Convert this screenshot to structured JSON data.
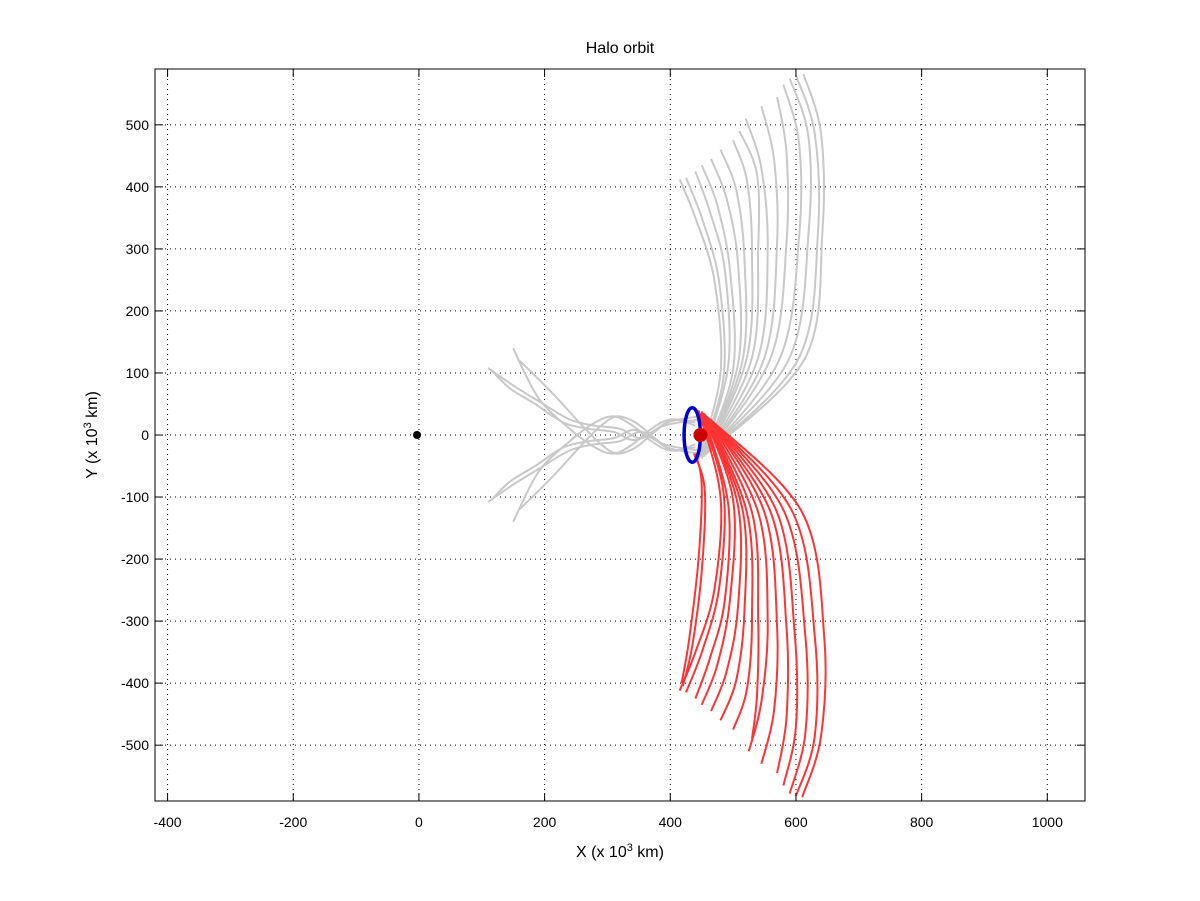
{
  "chart_data": {
    "type": "line",
    "title": "Halo orbit",
    "xlabel": {
      "prefix": "X (x 10",
      "sup": "3",
      "suffix": " km)"
    },
    "ylabel": {
      "prefix": "Y (x 10",
      "sup": "3",
      "suffix": " km)"
    },
    "xlim": [
      -420,
      1060
    ],
    "ylim": [
      -590,
      590
    ],
    "xticks": [
      -400,
      -200,
      0,
      200,
      400,
      600,
      800,
      1000
    ],
    "yticks": [
      -500,
      -400,
      -300,
      -200,
      -100,
      0,
      100,
      200,
      300,
      400,
      500
    ],
    "grid": true,
    "legend": "none",
    "colors": {
      "stable_manifold": "#c8c8c8",
      "unstable_manifold": "#ff3333",
      "halo_orbit": "#0000cc",
      "l2_point": "#cc0000",
      "earth": "#000000"
    },
    "earth": {
      "x": -3,
      "y": 0
    },
    "l2_point": {
      "x": 448,
      "y": 0
    },
    "halo": {
      "cx": 435,
      "cy": 0,
      "rx": 13,
      "ry": 44
    },
    "unstable_manifold": [
      {
        "x": [
          445,
          480,
          470,
          440,
          415
        ],
        "y": [
          40,
          -100,
          -250,
          -350,
          -412
        ]
      },
      {
        "x": [
          448,
          485,
          478,
          452,
          425
        ],
        "y": [
          35,
          -95,
          -245,
          -345,
          -415
        ]
      },
      {
        "x": [
          450,
          492,
          487,
          463,
          440
        ],
        "y": [
          38,
          -110,
          -265,
          -360,
          -425
        ]
      },
      {
        "x": [
          452,
          500,
          495,
          475,
          450
        ],
        "y": [
          35,
          -105,
          -265,
          -370,
          -435
        ]
      },
      {
        "x": [
          454,
          508,
          508,
          490,
          465
        ],
        "y": [
          35,
          -115,
          -275,
          -380,
          -445
        ]
      },
      {
        "x": [
          455,
          515,
          518,
          505,
          480
        ],
        "y": [
          32,
          -120,
          -285,
          -395,
          -460
        ]
      },
      {
        "x": [
          456,
          522,
          530,
          522,
          500
        ],
        "y": [
          32,
          -125,
          -295,
          -410,
          -475
        ]
      },
      {
        "x": [
          457,
          530,
          540,
          538,
          530
        ],
        "y": [
          30,
          -125,
          -300,
          -420,
          -490
        ]
      },
      {
        "x": [
          458,
          540,
          555,
          545,
          525
        ],
        "y": [
          30,
          -125,
          -300,
          -430,
          -510
        ]
      },
      {
        "x": [
          460,
          550,
          570,
          565,
          545
        ],
        "y": [
          28,
          -125,
          -310,
          -445,
          -530
        ]
      },
      {
        "x": [
          460,
          560,
          585,
          585,
          570
        ],
        "y": [
          28,
          -125,
          -310,
          -455,
          -545
        ]
      },
      {
        "x": [
          462,
          570,
          598,
          600,
          580
        ],
        "y": [
          26,
          -125,
          -320,
          -470,
          -565
        ]
      },
      {
        "x": [
          462,
          582,
          615,
          615,
          590
        ],
        "y": [
          26,
          -125,
          -325,
          -480,
          -578
        ]
      },
      {
        "x": [
          463,
          595,
          630,
          630,
          600
        ],
        "y": [
          25,
          -125,
          -325,
          -485,
          -582
        ]
      },
      {
        "x": [
          464,
          610,
          645,
          640,
          610
        ],
        "y": [
          25,
          -125,
          -325,
          -485,
          -584
        ]
      },
      {
        "x": [
          440,
          450,
          445,
          430,
          418
        ],
        "y": [
          -30,
          -80,
          -200,
          -330,
          -400
        ]
      },
      {
        "x": [
          438,
          455,
          450,
          435,
          420
        ],
        "y": [
          -30,
          -90,
          -220,
          -340,
          -405
        ]
      }
    ],
    "stable_manifold_right": [
      {
        "x": [
          445,
          480,
          470,
          440,
          415
        ],
        "y": [
          -40,
          100,
          250,
          350,
          412
        ]
      },
      {
        "x": [
          448,
          485,
          478,
          452,
          425
        ],
        "y": [
          -35,
          95,
          245,
          345,
          415
        ]
      },
      {
        "x": [
          450,
          492,
          487,
          463,
          440
        ],
        "y": [
          -38,
          110,
          265,
          360,
          425
        ]
      },
      {
        "x": [
          452,
          500,
          495,
          475,
          450
        ],
        "y": [
          -35,
          105,
          265,
          370,
          435
        ]
      },
      {
        "x": [
          454,
          508,
          508,
          490,
          465
        ],
        "y": [
          -35,
          115,
          275,
          380,
          445
        ]
      },
      {
        "x": [
          455,
          515,
          518,
          505,
          480
        ],
        "y": [
          -32,
          120,
          285,
          395,
          460
        ]
      },
      {
        "x": [
          456,
          522,
          530,
          522,
          500
        ],
        "y": [
          -32,
          125,
          295,
          410,
          475
        ]
      },
      {
        "x": [
          457,
          530,
          540,
          538,
          510
        ],
        "y": [
          -30,
          125,
          300,
          420,
          490
        ]
      },
      {
        "x": [
          458,
          540,
          555,
          545,
          520
        ],
        "y": [
          -30,
          125,
          300,
          430,
          510
        ]
      },
      {
        "x": [
          460,
          550,
          570,
          565,
          545
        ],
        "y": [
          -28,
          125,
          310,
          445,
          530
        ]
      },
      {
        "x": [
          460,
          560,
          585,
          585,
          570
        ],
        "y": [
          -28,
          125,
          310,
          455,
          545
        ]
      },
      {
        "x": [
          462,
          575,
          605,
          605,
          580
        ],
        "y": [
          -26,
          125,
          320,
          470,
          565
        ]
      },
      {
        "x": [
          463,
          590,
          620,
          620,
          590
        ],
        "y": [
          -25,
          125,
          325,
          480,
          575
        ]
      },
      {
        "x": [
          464,
          605,
          635,
          630,
          600
        ],
        "y": [
          -25,
          125,
          325,
          485,
          580
        ]
      },
      {
        "x": [
          465,
          615,
          642,
          640,
          612
        ],
        "y": [
          -25,
          125,
          325,
          485,
          582
        ]
      }
    ],
    "stable_manifold_left": [
      {
        "x": [
          445,
          395,
          355,
          320,
          280,
          240,
          190,
          150,
          110
        ],
        "y": [
          30,
          20,
          -5,
          10,
          15,
          25,
          55,
          80,
          108
        ]
      },
      {
        "x": [
          445,
          395,
          355,
          320,
          280,
          240,
          190,
          150,
          110
        ],
        "y": [
          -30,
          -20,
          5,
          -10,
          -15,
          -25,
          -55,
          -80,
          -108
        ]
      },
      {
        "x": [
          445,
          390,
          345,
          310,
          270,
          230,
          185,
          145,
          115
        ],
        "y": [
          25,
          15,
          -8,
          5,
          10,
          20,
          50,
          75,
          105
        ]
      },
      {
        "x": [
          445,
          390,
          345,
          310,
          270,
          230,
          185,
          145,
          115
        ],
        "y": [
          -25,
          -15,
          8,
          -5,
          -10,
          -20,
          -50,
          -75,
          -105
        ]
      },
      {
        "x": [
          440,
          400,
          370,
          340,
          310,
          280,
          240,
          190,
          150
        ],
        "y": [
          20,
          25,
          10,
          -15,
          -30,
          -20,
          10,
          60,
          140
        ]
      },
      {
        "x": [
          440,
          400,
          370,
          340,
          310,
          280,
          240,
          190,
          150
        ],
        "y": [
          -20,
          -25,
          -10,
          15,
          30,
          20,
          -10,
          -60,
          -140
        ]
      },
      {
        "x": [
          440,
          405,
          375,
          345,
          315,
          290,
          260,
          210,
          160
        ],
        "y": [
          15,
          25,
          5,
          -20,
          -30,
          -15,
          15,
          70,
          120
        ]
      },
      {
        "x": [
          440,
          405,
          375,
          345,
          315,
          290,
          260,
          210,
          160
        ],
        "y": [
          -15,
          -25,
          -5,
          20,
          30,
          15,
          -15,
          -70,
          -120
        ]
      }
    ]
  }
}
